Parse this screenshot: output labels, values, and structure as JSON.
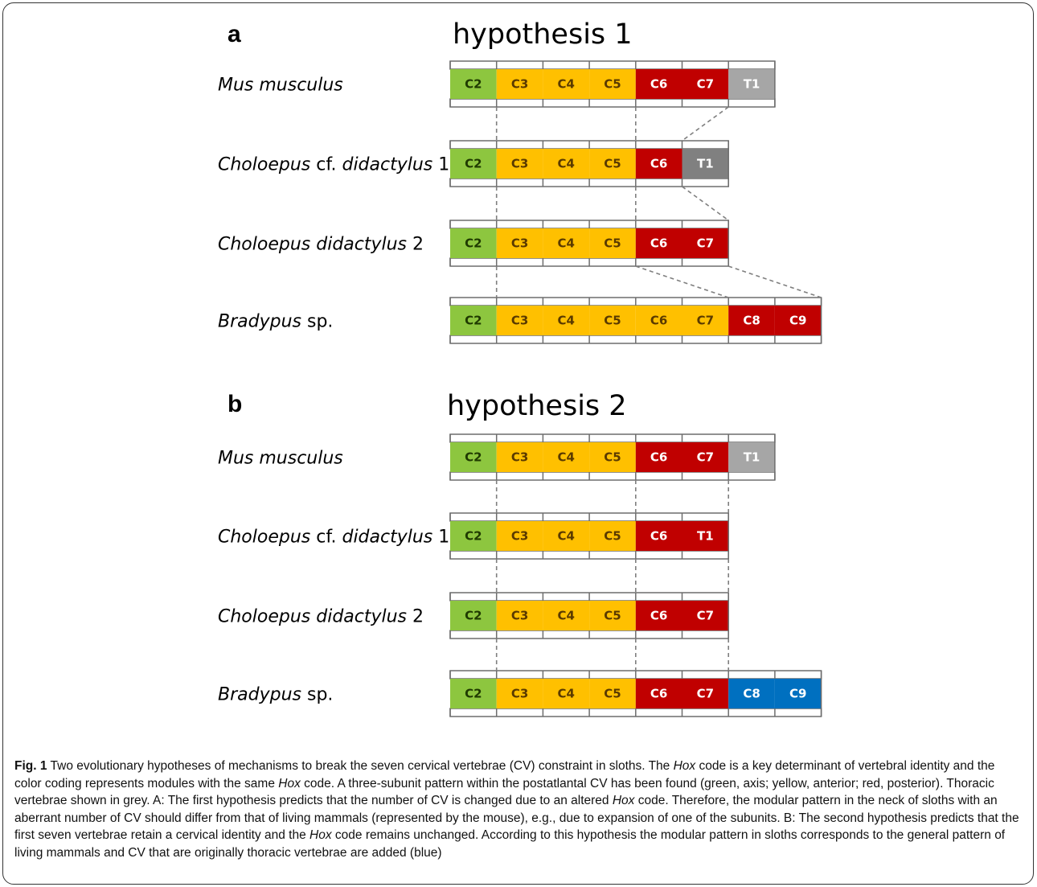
{
  "panels": [
    {
      "label": "a",
      "title": "hypothesis 1",
      "rows": [
        {
          "species": [
            {
              "t": "Mus musculus",
              "i": true
            }
          ],
          "vertebrae": [
            [
              "C2",
              "axis"
            ],
            [
              "C3",
              "anterior"
            ],
            [
              "C4",
              "anterior"
            ],
            [
              "C5",
              "anterior"
            ],
            [
              "C6",
              "posterior"
            ],
            [
              "C7",
              "posterior"
            ],
            [
              "T1",
              "thoracic_light"
            ]
          ]
        },
        {
          "species": [
            {
              "t": "Choloepus",
              "i": true
            },
            {
              "t": " cf. ",
              "i": false
            },
            {
              "t": "didactylus",
              "i": true
            },
            {
              "t": " 1",
              "i": false
            }
          ],
          "vertebrae": [
            [
              "C2",
              "axis"
            ],
            [
              "C3",
              "anterior"
            ],
            [
              "C4",
              "anterior"
            ],
            [
              "C5",
              "anterior"
            ],
            [
              "C6",
              "posterior"
            ],
            [
              "T1",
              "thoracic_dark"
            ]
          ]
        },
        {
          "species": [
            {
              "t": "Choloepus didactylus",
              "i": true
            },
            {
              "t": " 2",
              "i": false
            }
          ],
          "vertebrae": [
            [
              "C2",
              "axis"
            ],
            [
              "C3",
              "anterior"
            ],
            [
              "C4",
              "anterior"
            ],
            [
              "C5",
              "anterior"
            ],
            [
              "C6",
              "posterior"
            ],
            [
              "C7",
              "posterior"
            ]
          ]
        },
        {
          "species": [
            {
              "t": "Bradypus",
              "i": true
            },
            {
              "t": " sp.",
              "i": false
            }
          ],
          "vertebrae": [
            [
              "C2",
              "axis"
            ],
            [
              "C3",
              "anterior"
            ],
            [
              "C4",
              "anterior"
            ],
            [
              "C5",
              "anterior"
            ],
            [
              "C6",
              "anterior"
            ],
            [
              "C7",
              "anterior"
            ],
            [
              "C8",
              "posterior"
            ],
            [
              "C9",
              "posterior"
            ]
          ]
        }
      ]
    },
    {
      "label": "b",
      "title": "hypothesis 2",
      "rows": [
        {
          "species": [
            {
              "t": "Mus musculus",
              "i": true
            }
          ],
          "vertebrae": [
            [
              "C2",
              "axis"
            ],
            [
              "C3",
              "anterior"
            ],
            [
              "C4",
              "anterior"
            ],
            [
              "C5",
              "anterior"
            ],
            [
              "C6",
              "posterior"
            ],
            [
              "C7",
              "posterior"
            ],
            [
              "T1",
              "thoracic_light"
            ]
          ]
        },
        {
          "species": [
            {
              "t": "Choloepus",
              "i": true
            },
            {
              "t": " cf. ",
              "i": false
            },
            {
              "t": "didactylus",
              "i": true
            },
            {
              "t": " 1",
              "i": false
            }
          ],
          "vertebrae": [
            [
              "C2",
              "axis"
            ],
            [
              "C3",
              "anterior"
            ],
            [
              "C4",
              "anterior"
            ],
            [
              "C5",
              "anterior"
            ],
            [
              "C6",
              "posterior"
            ],
            [
              "T1",
              "posterior"
            ]
          ]
        },
        {
          "species": [
            {
              "t": "Choloepus didactylus",
              "i": true
            },
            {
              "t": " 2",
              "i": false
            }
          ],
          "vertebrae": [
            [
              "C2",
              "axis"
            ],
            [
              "C3",
              "anterior"
            ],
            [
              "C4",
              "anterior"
            ],
            [
              "C5",
              "anterior"
            ],
            [
              "C6",
              "posterior"
            ],
            [
              "C7",
              "posterior"
            ]
          ]
        },
        {
          "species": [
            {
              "t": "Bradypus",
              "i": true
            },
            {
              "t": " sp.",
              "i": false
            }
          ],
          "vertebrae": [
            [
              "C2",
              "axis"
            ],
            [
              "C3",
              "anterior"
            ],
            [
              "C4",
              "anterior"
            ],
            [
              "C5",
              "anterior"
            ],
            [
              "C6",
              "posterior"
            ],
            [
              "C7",
              "posterior"
            ],
            [
              "C8",
              "added"
            ],
            [
              "C9",
              "added"
            ]
          ]
        }
      ]
    }
  ],
  "colors": {
    "axis": "#8dc63f",
    "anterior": "#ffc000",
    "posterior": "#c00000",
    "thoracic_light": "#a6a6a6",
    "thoracic_dark": "#808080",
    "added": "#0070c0",
    "label_on_yellow": "#5a3a00",
    "label_on_dark": "#ffffff",
    "label_on_green": "#1f3a00"
  },
  "caption": {
    "fig_label": "Fig. 1",
    "segments": [
      {
        "t": " Two evolutionary hypotheses of mechanisms to break the seven cervical vertebrae (CV) constraint in sloths. The ",
        "i": false
      },
      {
        "t": "Hox",
        "i": true
      },
      {
        "t": " code is a key determinant of vertebral identity and the color coding represents modules with the same ",
        "i": false
      },
      {
        "t": "Hox",
        "i": true
      },
      {
        "t": " code. A three-subunit pattern within the postatlantal CV has been found (green, axis; yellow, anterior; red, posterior). Thoracic vertebrae shown in grey. A: The first hypothesis predicts that the number of CV is changed due to an altered ",
        "i": false
      },
      {
        "t": "Hox",
        "i": true
      },
      {
        "t": " code. Therefore, the modular pattern in the neck of sloths with an aberrant number of CV should differ from that of living mammals (represented by the mouse), e.g., due to expansion of one of the subunits. B: The second hypothesis predicts that the first seven vertebrae retain a cervical identity and the ",
        "i": false
      },
      {
        "t": "Hox",
        "i": true
      },
      {
        "t": " code remains unchanged. According to this hypothesis the modular pattern in sloths corresponds to the general pattern of living mammals and CV that are originally thoracic vertebrae are added (blue)",
        "i": false
      }
    ]
  }
}
